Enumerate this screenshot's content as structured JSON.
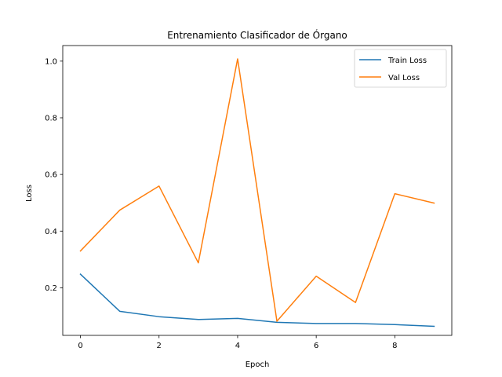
{
  "chart_data": {
    "type": "line",
    "title": "Entrenamiento Clasificador de Órgano",
    "xlabel": "Epoch",
    "ylabel": "Loss",
    "x": [
      0,
      1,
      2,
      3,
      4,
      5,
      6,
      7,
      8,
      9
    ],
    "xlim": [
      -0.45,
      9.45
    ],
    "ylim": [
      0.032,
      1.055
    ],
    "xticks": [
      0,
      2,
      4,
      6,
      8
    ],
    "yticks": [
      0.2,
      0.4,
      0.6,
      0.8,
      1.0
    ],
    "xtick_labels": [
      "0",
      "2",
      "4",
      "6",
      "8"
    ],
    "ytick_labels": [
      "0.2",
      "0.4",
      "0.6",
      "0.8",
      "1.0"
    ],
    "grid": false,
    "legend_position": "top-right",
    "series": [
      {
        "name": "Train Loss",
        "color": "#1f77b4",
        "values": [
          0.248,
          0.117,
          0.098,
          0.088,
          0.092,
          0.078,
          0.074,
          0.074,
          0.07,
          0.064
        ]
      },
      {
        "name": "Val Loss",
        "color": "#ff7f0e",
        "values": [
          0.33,
          0.474,
          0.559,
          0.288,
          1.008,
          0.082,
          0.241,
          0.148,
          0.532,
          0.499
        ]
      }
    ]
  }
}
